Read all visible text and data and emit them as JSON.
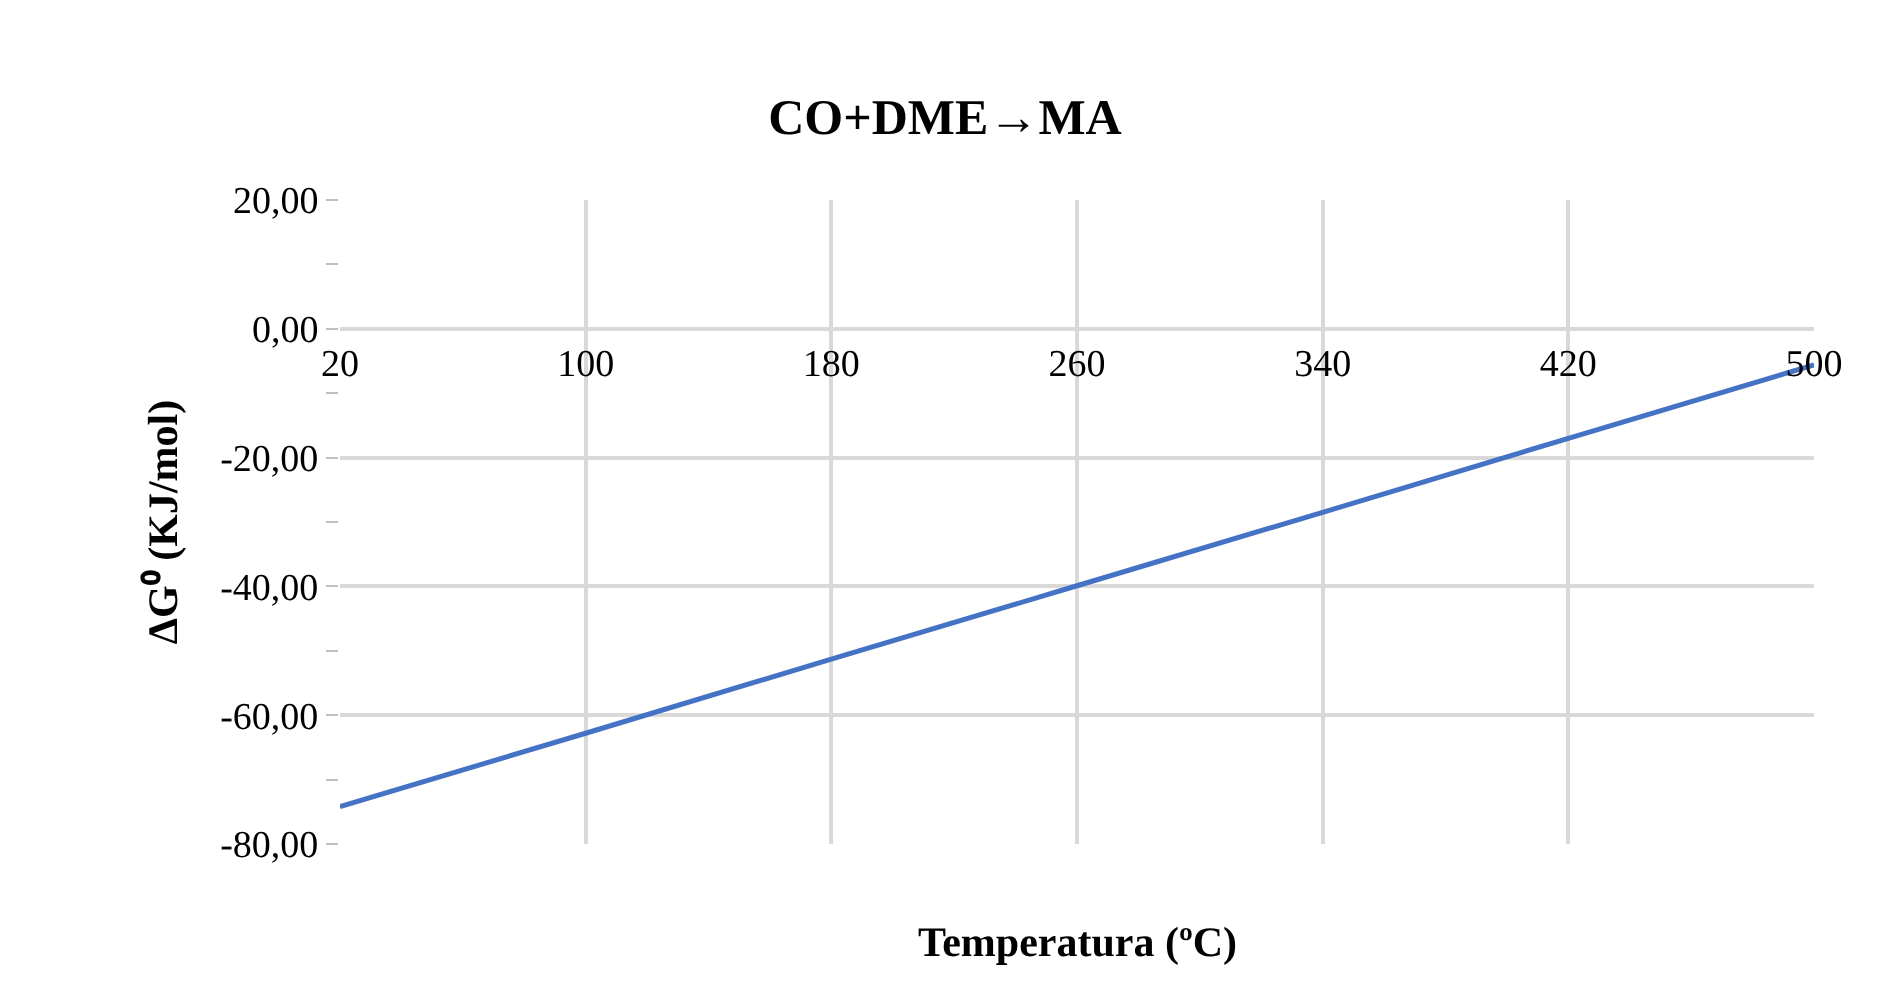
{
  "chart_data": {
    "type": "line",
    "title": "CO+DME→MA",
    "xlabel": "Temperatura (ºC)",
    "ylabel": "ΔG⁰ (KJ/mol)",
    "x": [
      20,
      100,
      180,
      260,
      340,
      420,
      500
    ],
    "series": [
      {
        "color": "#4472c4",
        "values": [
          -74.2,
          -62.8,
          -51.3,
          -39.9,
          -28.5,
          -17.0,
          -5.6
        ]
      }
    ],
    "xlim": [
      20,
      500
    ],
    "xticks": [
      20,
      100,
      180,
      260,
      340,
      420,
      500
    ],
    "ylim": [
      -80,
      20
    ],
    "yticks": [
      {
        "value": 20,
        "label": "20,00"
      },
      {
        "value": 0,
        "label": "0,00"
      },
      {
        "value": -20,
        "label": "-20,00"
      },
      {
        "value": -40,
        "label": "-40,00"
      },
      {
        "value": -60,
        "label": "-60,00"
      },
      {
        "value": -80,
        "label": "-80,00"
      }
    ],
    "grid": true,
    "marker": "none",
    "line_style": "solid"
  }
}
